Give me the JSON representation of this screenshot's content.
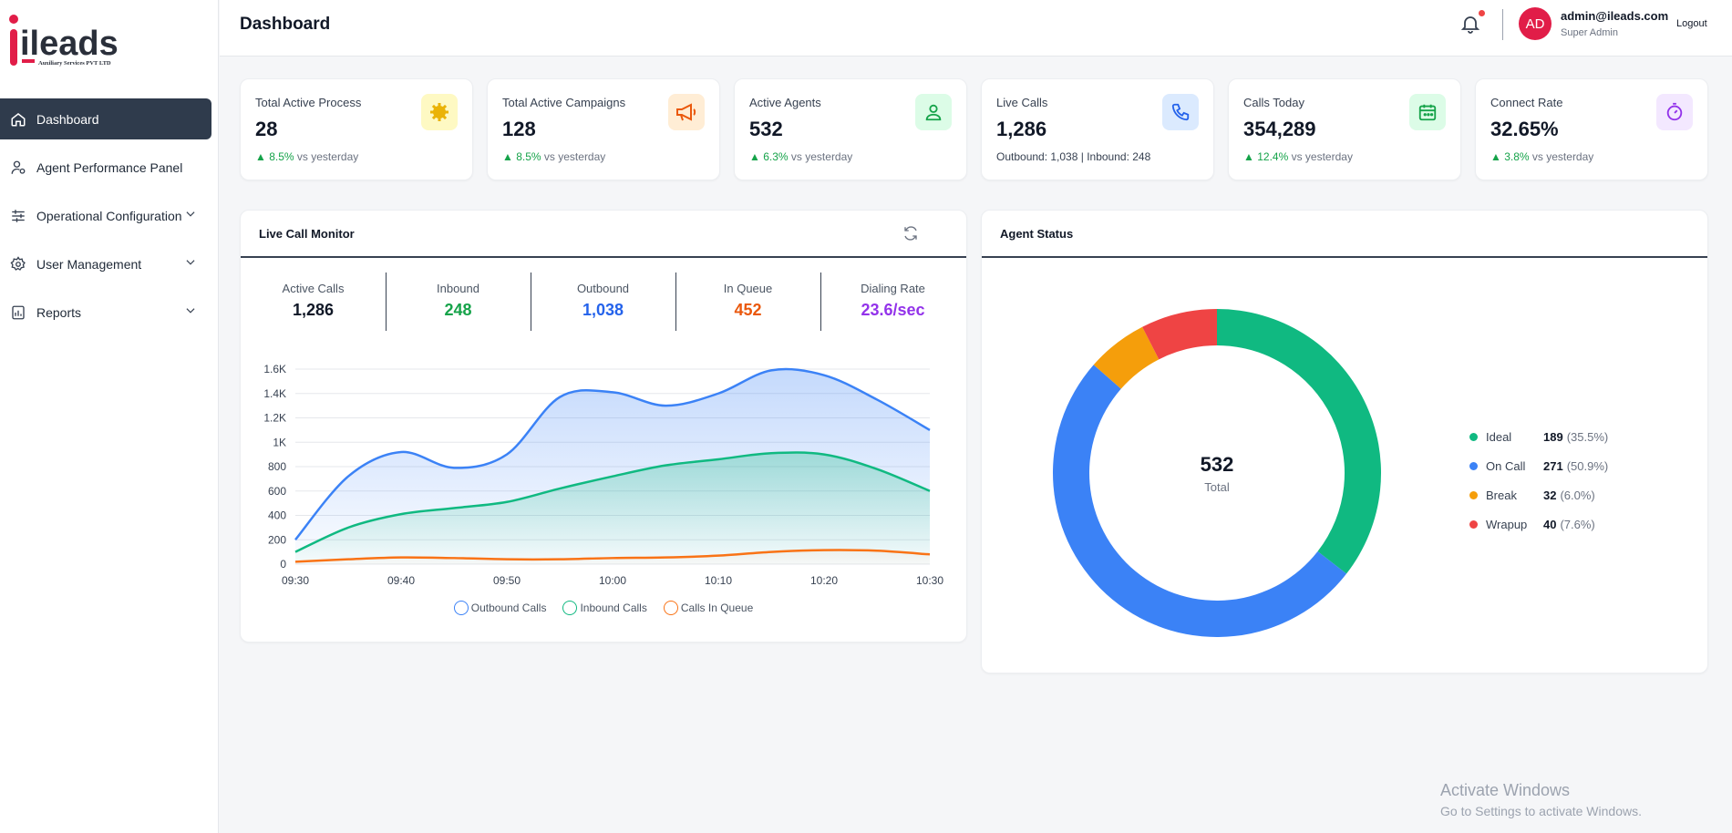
{
  "brand": {
    "name": "ileads",
    "tagline": "Auxiliary Services PVT LTD"
  },
  "sidebar": {
    "items": [
      {
        "label": "Dashboard",
        "icon": "home-icon",
        "active": true
      },
      {
        "label": "Agent Performance Panel",
        "icon": "user-settings-icon"
      },
      {
        "label": "Operational Configuration",
        "icon": "sliders-icon",
        "expandable": true
      },
      {
        "label": "User Management",
        "icon": "gear-icon",
        "expandable": true
      },
      {
        "label": "Reports",
        "icon": "report-icon",
        "expandable": true
      }
    ]
  },
  "header": {
    "title": "Dashboard",
    "user": {
      "initials": "AD",
      "email": "admin@ileads.com",
      "role": "Super Admin"
    },
    "logout": "Logout"
  },
  "stats": [
    {
      "label": "Total Active Process",
      "value": "28",
      "change": "8.5%",
      "suffix": "vs yesterday",
      "icon": "gear-icon",
      "color": "#eab308",
      "bg": "#fef9c3"
    },
    {
      "label": "Total Active Campaigns",
      "value": "128",
      "change": "8.5%",
      "suffix": "vs yesterday",
      "icon": "megaphone-icon",
      "color": "#ea580c",
      "bg": "#ffedd5"
    },
    {
      "label": "Active Agents",
      "value": "532",
      "change": "6.3%",
      "suffix": "vs yesterday",
      "icon": "person-icon",
      "color": "#16a34a",
      "bg": "#dcfce7"
    },
    {
      "label": "Live Calls",
      "value": "1,286",
      "detail": "Outbound: 1,038 | Inbound: 248",
      "icon": "phone-icon",
      "color": "#2563eb",
      "bg": "#dbeafe"
    },
    {
      "label": "Calls Today",
      "value": "354,289",
      "change": "12.4%",
      "suffix": "vs yesterday",
      "icon": "calendar-icon",
      "color": "#16a34a",
      "bg": "#dcfce7"
    },
    {
      "label": "Connect Rate",
      "value": "32.65%",
      "change": "3.8%",
      "suffix": "vs yesterday",
      "icon": "timer-icon",
      "color": "#9333ea",
      "bg": "#f3e8ff"
    }
  ],
  "live_monitor": {
    "title": "Live Call Monitor",
    "metrics": [
      {
        "label": "Active Calls",
        "value": "1,286",
        "color": "#111827"
      },
      {
        "label": "Inbound",
        "value": "248",
        "color": "#16a34a"
      },
      {
        "label": "Outbound",
        "value": "1,038",
        "color": "#2563eb"
      },
      {
        "label": "In Queue",
        "value": "452",
        "color": "#ea580c"
      },
      {
        "label": "Dialing Rate",
        "value": "23.6/sec",
        "color": "#9333ea"
      }
    ]
  },
  "agent_status": {
    "title": "Agent Status",
    "total": "532",
    "total_label": "Total",
    "items": [
      {
        "name": "Ideal",
        "count": "189",
        "pct": "(35.5%)",
        "value": 189,
        "color": "#10b981"
      },
      {
        "name": "On Call",
        "count": "271",
        "pct": "(50.9%)",
        "value": 271,
        "color": "#3b82f6"
      },
      {
        "name": "Break",
        "count": "32",
        "pct": "(6.0%)",
        "value": 32,
        "color": "#f59e0b"
      },
      {
        "name": "Wrapup",
        "count": "40",
        "pct": "(7.6%)",
        "value": 40,
        "color": "#ef4444"
      }
    ]
  },
  "chart_data": {
    "type": "area",
    "x": [
      "09:30",
      "09:35",
      "09:40",
      "09:45",
      "09:50",
      "09:55",
      "10:00",
      "10:05",
      "10:10",
      "10:15",
      "10:20",
      "10:25",
      "10:30"
    ],
    "ylim": [
      0,
      1600
    ],
    "yticks": [
      0,
      200,
      400,
      600,
      800,
      "1K",
      "1.2K",
      "1.4K",
      "1.6K"
    ],
    "series": [
      {
        "name": "Outbound Calls",
        "color": "#3b82f6",
        "values": [
          200,
          720,
          920,
          790,
          900,
          1370,
          1410,
          1300,
          1400,
          1590,
          1550,
          1350,
          1100
        ]
      },
      {
        "name": "Inbound Calls",
        "color": "#10b981",
        "values": [
          100,
          300,
          410,
          460,
          510,
          620,
          720,
          810,
          860,
          910,
          900,
          780,
          600
        ]
      },
      {
        "name": "Calls In Queue",
        "color": "#f97316",
        "values": [
          20,
          40,
          55,
          50,
          40,
          40,
          50,
          55,
          70,
          100,
          115,
          110,
          80
        ]
      }
    ]
  },
  "watermark": {
    "title": "Activate Windows",
    "subtitle": "Go to Settings to activate Windows."
  }
}
